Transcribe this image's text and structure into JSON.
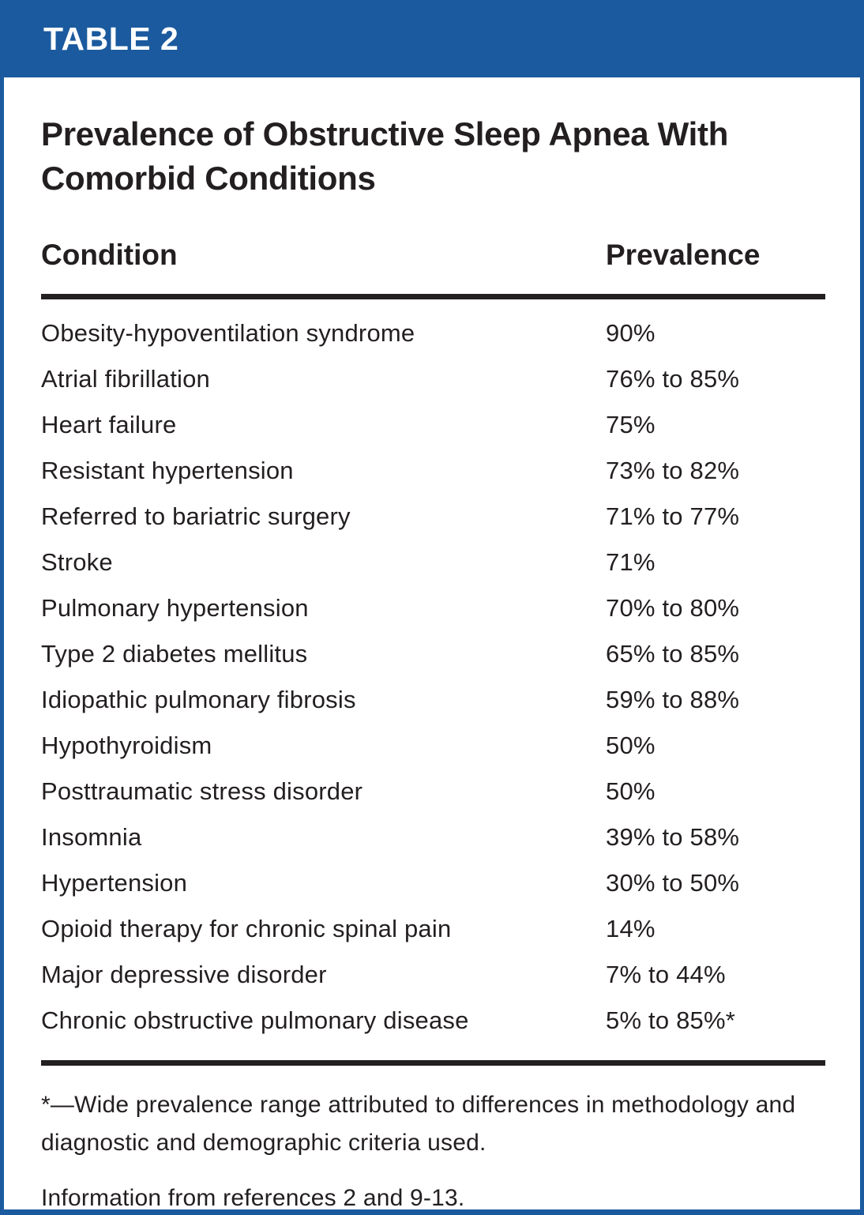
{
  "banner": {
    "label": "TABLE 2"
  },
  "title": "Prevalence of Obstructive Sleep Apnea With Comorbid Conditions",
  "table": {
    "columns": {
      "condition": "Condition",
      "prevalence": "Prevalence"
    },
    "rows": [
      {
        "condition": "Obesity-hypoventilation syndrome",
        "prevalence": "90%"
      },
      {
        "condition": "Atrial fibrillation",
        "prevalence": "76% to 85%"
      },
      {
        "condition": "Heart failure",
        "prevalence": "75%"
      },
      {
        "condition": "Resistant hypertension",
        "prevalence": "73% to 82%"
      },
      {
        "condition": "Referred to bariatric surgery",
        "prevalence": "71% to 77%"
      },
      {
        "condition": "Stroke",
        "prevalence": "71%"
      },
      {
        "condition": "Pulmonary hypertension",
        "prevalence": "70% to 80%"
      },
      {
        "condition": "Type 2 diabetes mellitus",
        "prevalence": "65% to 85%"
      },
      {
        "condition": "Idiopathic pulmonary fibrosis",
        "prevalence": "59% to 88%"
      },
      {
        "condition": "Hypothyroidism",
        "prevalence": "50%"
      },
      {
        "condition": "Posttraumatic stress disorder",
        "prevalence": "50%"
      },
      {
        "condition": "Insomnia",
        "prevalence": "39% to 58%"
      },
      {
        "condition": "Hypertension",
        "prevalence": "30% to 50%"
      },
      {
        "condition": "Opioid therapy for chronic spinal pain",
        "prevalence": "14%"
      },
      {
        "condition": "Major depressive disorder",
        "prevalence": "7% to 44%"
      },
      {
        "condition": "Chronic obstructive pulmonary disease",
        "prevalence": "5% to 85%*"
      }
    ]
  },
  "footnotes": {
    "asterisk_note": "*—Wide prevalence range attributed to differences in methodology and diagnostic and demographic criteria used.",
    "source_note": "Information from references 2 and 9-13."
  },
  "colors": {
    "banner_blue": "#1b5a9e",
    "border_blue": "#1b5a9e",
    "text_black": "#231f20"
  }
}
